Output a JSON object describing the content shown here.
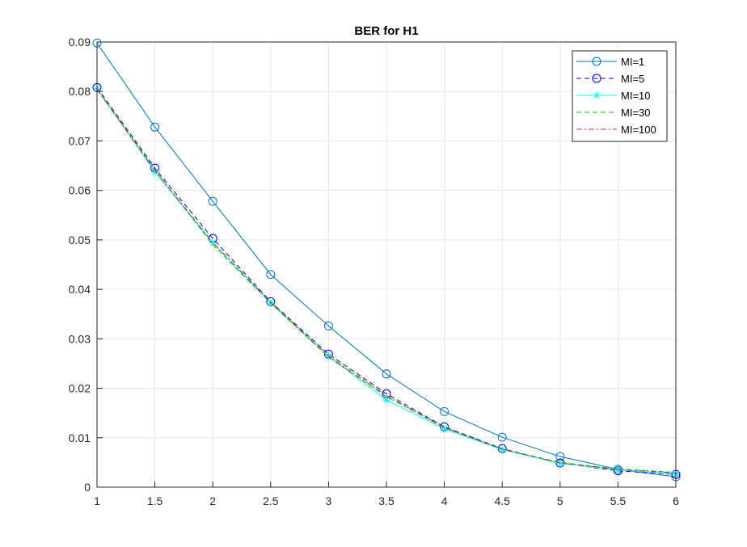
{
  "chart_data": {
    "type": "line",
    "title": "BER for H1",
    "xlabel": "",
    "ylabel": "",
    "xlim": [
      1,
      6
    ],
    "ylim": [
      0,
      0.09
    ],
    "xticks": [
      1,
      1.5,
      2,
      2.5,
      3,
      3.5,
      4,
      4.5,
      5,
      5.5,
      6
    ],
    "xtick_labels": [
      "1",
      "1.5",
      "2",
      "2.5",
      "3",
      "3.5",
      "4",
      "4.5",
      "5",
      "5.5",
      "6"
    ],
    "yticks": [
      0,
      0.01,
      0.02,
      0.03,
      0.04,
      0.05,
      0.06,
      0.07,
      0.08,
      0.09
    ],
    "ytick_labels": [
      "0",
      "0.01",
      "0.02",
      "0.03",
      "0.04",
      "0.05",
      "0.06",
      "0.07",
      "0.08",
      "0.09"
    ],
    "grid": true,
    "legend_position": "top-right",
    "x": [
      1,
      1.5,
      2,
      2.5,
      3,
      3.5,
      4,
      4.5,
      5,
      5.5,
      6
    ],
    "series": [
      {
        "name": "MI=1",
        "color": "#0072bd",
        "dash": "solid",
        "marker": "circle",
        "values": [
          0.0898,
          0.0728,
          0.0578,
          0.043,
          0.0326,
          0.0229,
          0.0153,
          0.0101,
          0.0062,
          0.0036,
          0.0021
        ]
      },
      {
        "name": "MI=5",
        "color": "#0000ff",
        "dash": "dashed",
        "marker": "circle",
        "values": [
          0.0808,
          0.0645,
          0.0503,
          0.0375,
          0.0269,
          0.0189,
          0.0122,
          0.0078,
          0.0049,
          0.0033,
          0.0026
        ]
      },
      {
        "name": "MI=10",
        "color": "#00ffff",
        "dash": "solid",
        "marker": "star",
        "values": [
          0.0806,
          0.0637,
          0.0494,
          0.0372,
          0.0265,
          0.0176,
          0.0118,
          0.0076,
          0.0048,
          0.0035,
          0.0027
        ]
      },
      {
        "name": "MI=30",
        "color": "#00cc00",
        "dash": "dashed",
        "marker": "none",
        "values": [
          0.0805,
          0.0642,
          0.049,
          0.0372,
          0.0263,
          0.0183,
          0.012,
          0.0077,
          0.005,
          0.0037,
          0.003
        ]
      },
      {
        "name": "MI=100",
        "color": "#d62728",
        "dash": "dashdot",
        "marker": "none",
        "values": [
          0.0804,
          0.064,
          0.0495,
          0.0374,
          0.0265,
          0.0185,
          0.0121,
          0.0077,
          0.0049,
          0.0036,
          0.0029
        ]
      }
    ]
  }
}
